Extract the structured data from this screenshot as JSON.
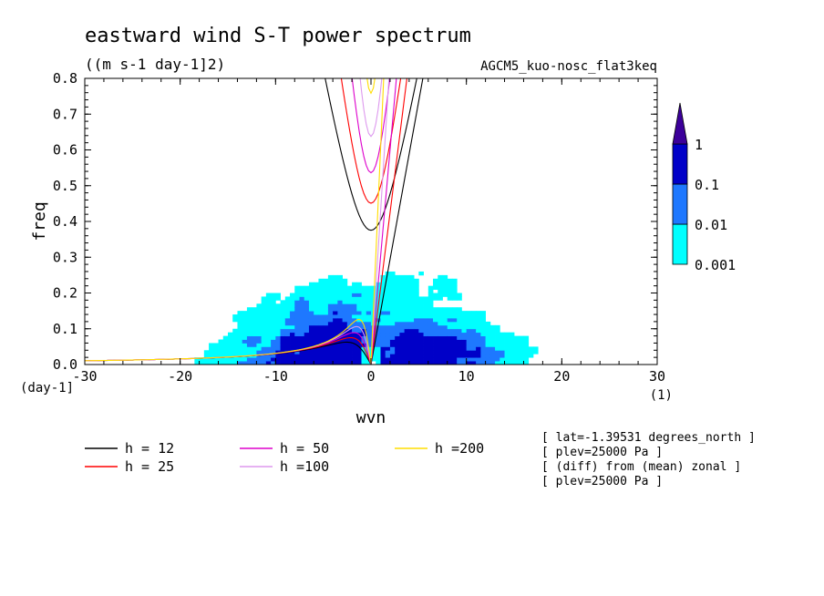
{
  "chart_data": {
    "type": "heatmap",
    "title": "eastward wind S-T power spectrum",
    "units": "((m s-1 day-1]2)",
    "model": "AGCM5_kuo-nosc_flat3keq",
    "xlabel": "wvn",
    "ylabel": "freq",
    "x_unit": "(1)",
    "y_unit": "(day-1]",
    "xlim": [
      -30,
      30
    ],
    "ylim": [
      0,
      0.8
    ],
    "x_ticks": [
      "-30",
      "-20",
      "-10",
      "0",
      "10",
      "20",
      "30"
    ],
    "y_ticks": [
      "0.0",
      "0.1",
      "0.2",
      "0.3",
      "0.4",
      "0.5",
      "0.6",
      "0.7",
      "0.8"
    ],
    "colorbar": {
      "levels": [
        "0.001",
        "0.01",
        "0.1",
        "1"
      ],
      "colors": [
        "#00ffff",
        "#1e78ff",
        "#0000c8",
        "#3c009a"
      ]
    },
    "series": [
      {
        "name": "h = 12",
        "h": 12,
        "color": "#000000"
      },
      {
        "name": "h = 25",
        "h": 25,
        "color": "#ff0000"
      },
      {
        "name": "h = 50",
        "h": 50,
        "color": "#dd00cc"
      },
      {
        "name": "h =100",
        "h": 100,
        "color": "#dd99ee"
      },
      {
        "name": "h =200",
        "h": 200,
        "color": "#ffdd00"
      }
    ],
    "info": [
      "[ lat=-1.39531 degrees_north ]",
      "[ plev=25000 Pa ]",
      "[ (diff) from (mean) zonal ]",
      "[ plev=25000 Pa ]"
    ]
  }
}
